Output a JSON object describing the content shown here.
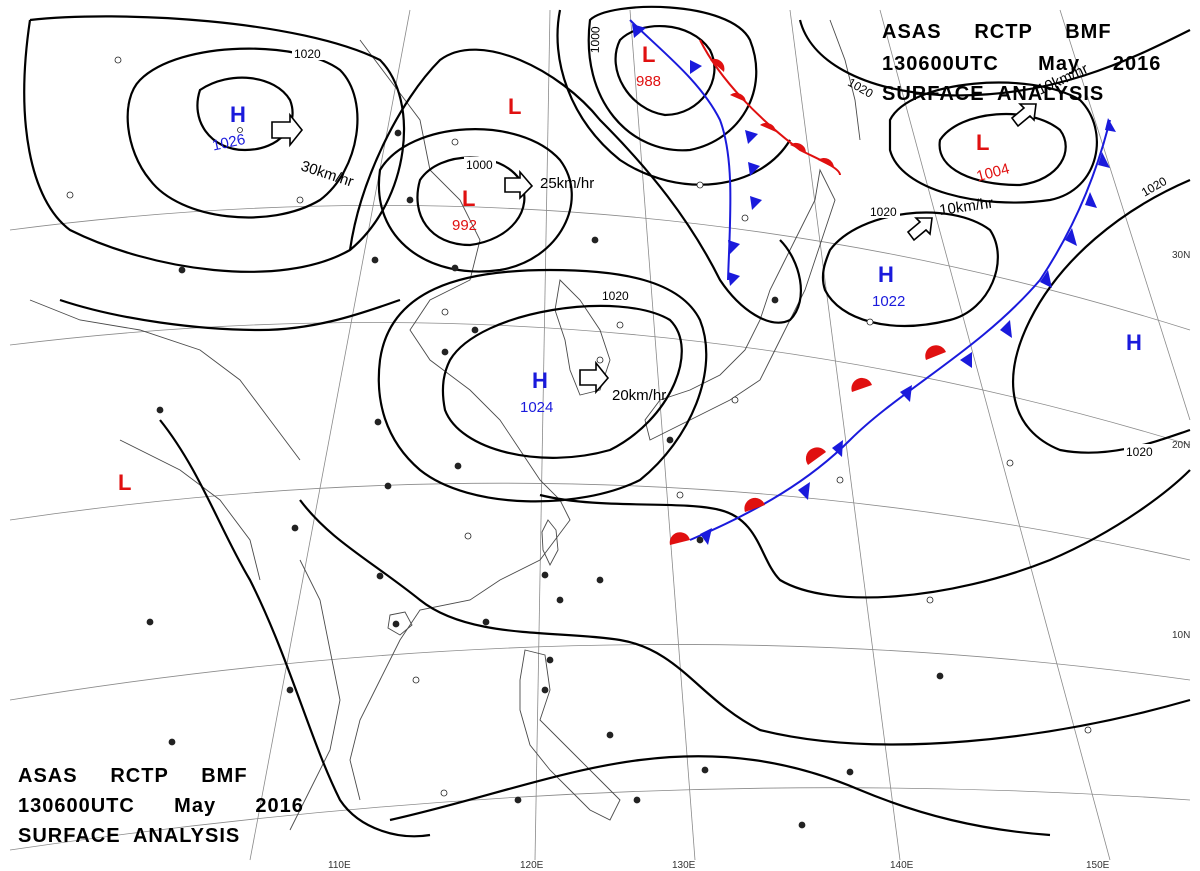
{
  "header": {
    "top_right": [
      "ASAS     RCTP     BMF",
      "130600UTC      May     2016",
      "SURFACE  ANALYSIS"
    ],
    "bottom_left": [
      "ASAS     RCTP     BMF",
      "130600UTC      May      2016",
      "SURFACE  ANALYSIS"
    ]
  },
  "pressure_centers": [
    {
      "type": "H",
      "value": "1026",
      "color": "#1a1adc"
    },
    {
      "type": "H",
      "value": "1024",
      "color": "#1a1adc"
    },
    {
      "type": "H",
      "value": "1022",
      "color": "#1a1adc"
    },
    {
      "type": "H",
      "value": "",
      "color": "#1a1adc"
    },
    {
      "type": "L",
      "value": "992",
      "color": "#e01010"
    },
    {
      "type": "L",
      "value": "988",
      "color": "#e01010"
    },
    {
      "type": "L",
      "value": "1004",
      "color": "#e01010"
    },
    {
      "type": "L",
      "value": "",
      "color": "#e01010"
    },
    {
      "type": "L",
      "value": "",
      "color": "#e01010"
    }
  ],
  "movement_speeds": [
    "30km/hr",
    "25km/hr",
    "20km/hr",
    "10km/hr",
    "10km/hr"
  ],
  "isobar_labels": [
    "1020",
    "1020",
    "1000",
    "1000",
    "1020",
    "1020",
    "1020",
    "1020"
  ],
  "axis_ticks": {
    "latitude": [
      "30N",
      "20N",
      "10N"
    ],
    "longitude": [
      "110E",
      "120E",
      "130E",
      "140E",
      "150E"
    ]
  },
  "colors": {
    "high": "#1a1adc",
    "low": "#e01010",
    "warm_front": "#e01010",
    "cold_front": "#1a1adc",
    "isobar": "#000000",
    "map_lines": "#555555"
  }
}
